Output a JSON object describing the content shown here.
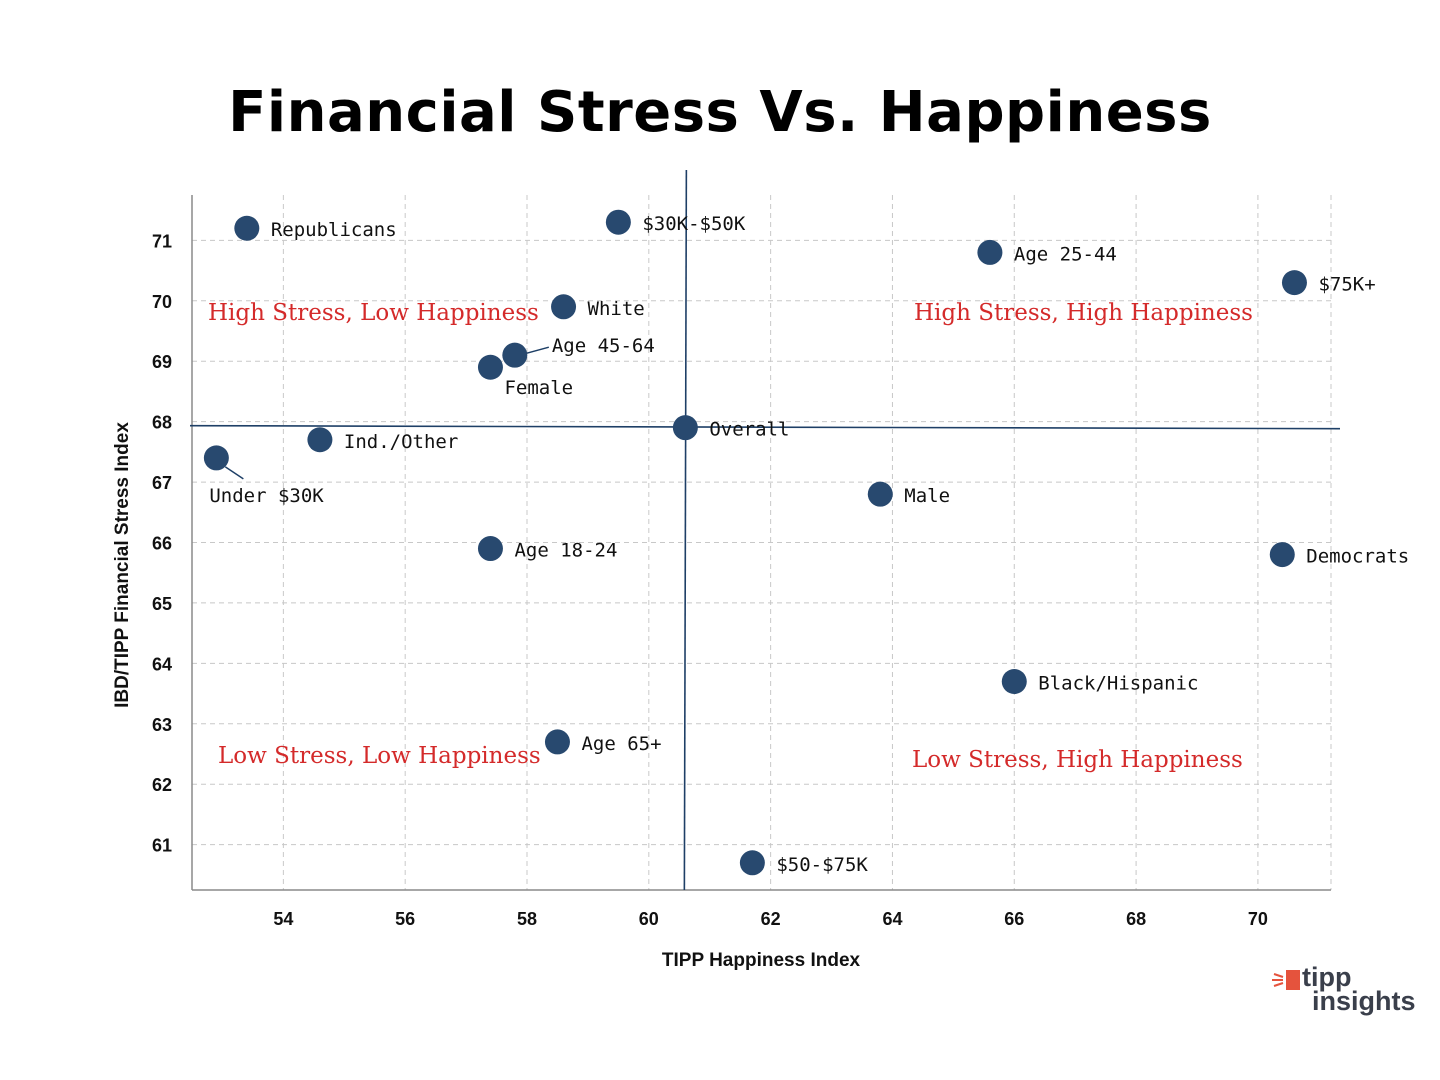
{
  "chart_data": {
    "type": "scatter",
    "title": "Financial Stress Vs. Happiness",
    "xlabel": "TIPP Happiness Index",
    "ylabel": "IBD/TIPP Financial Stress Index",
    "xlim": [
      52.5,
      71.2
    ],
    "ylim": [
      60.25,
      71.75
    ],
    "xticks": [
      54,
      56,
      58,
      60,
      62,
      64,
      66,
      68,
      70
    ],
    "yticks": [
      61,
      62,
      63,
      64,
      65,
      66,
      67,
      68,
      69,
      70,
      71
    ],
    "grid": true,
    "reference_lines": {
      "x": 60.6,
      "y": 67.9
    },
    "marker_color": "#28496f",
    "quadrant_color": "#d42a2a",
    "points": [
      {
        "label": "Republicans",
        "x": 53.4,
        "y": 71.2
      },
      {
        "label": "$30K-$50K",
        "x": 59.5,
        "y": 71.3
      },
      {
        "label": "Age 25-44",
        "x": 65.6,
        "y": 70.8
      },
      {
        "label": "$75K+",
        "x": 70.6,
        "y": 70.3
      },
      {
        "label": "White",
        "x": 58.6,
        "y": 69.9
      },
      {
        "label": "Age 45-64",
        "x": 57.8,
        "y": 69.1
      },
      {
        "label": "Female",
        "x": 57.4,
        "y": 68.9
      },
      {
        "label": "Overall",
        "x": 60.6,
        "y": 67.9
      },
      {
        "label": "Ind./Other",
        "x": 54.6,
        "y": 67.7
      },
      {
        "label": "Under $30K",
        "x": 52.9,
        "y": 67.4
      },
      {
        "label": "Male",
        "x": 63.8,
        "y": 66.8
      },
      {
        "label": "Age 18-24",
        "x": 57.4,
        "y": 65.9
      },
      {
        "label": "Democrats",
        "x": 70.4,
        "y": 65.8
      },
      {
        "label": "Black/Hispanic",
        "x": 66.0,
        "y": 63.7
      },
      {
        "label": "Age 65+",
        "x": 58.5,
        "y": 62.7
      },
      {
        "label": "$50-$75K",
        "x": 61.7,
        "y": 60.7
      }
    ],
    "quadrant_labels": [
      {
        "text": "High Stress, Low Happiness",
        "position": "top-left"
      },
      {
        "text": "High Stress, High Happiness",
        "position": "top-right"
      },
      {
        "text": "Low Stress, Low Happiness",
        "position": "bottom-left"
      },
      {
        "text": "Low Stress, High Happiness",
        "position": "bottom-right"
      }
    ]
  },
  "logo": {
    "line1": "tipp",
    "line2": "insights",
    "accent_color": "#e5533d"
  }
}
